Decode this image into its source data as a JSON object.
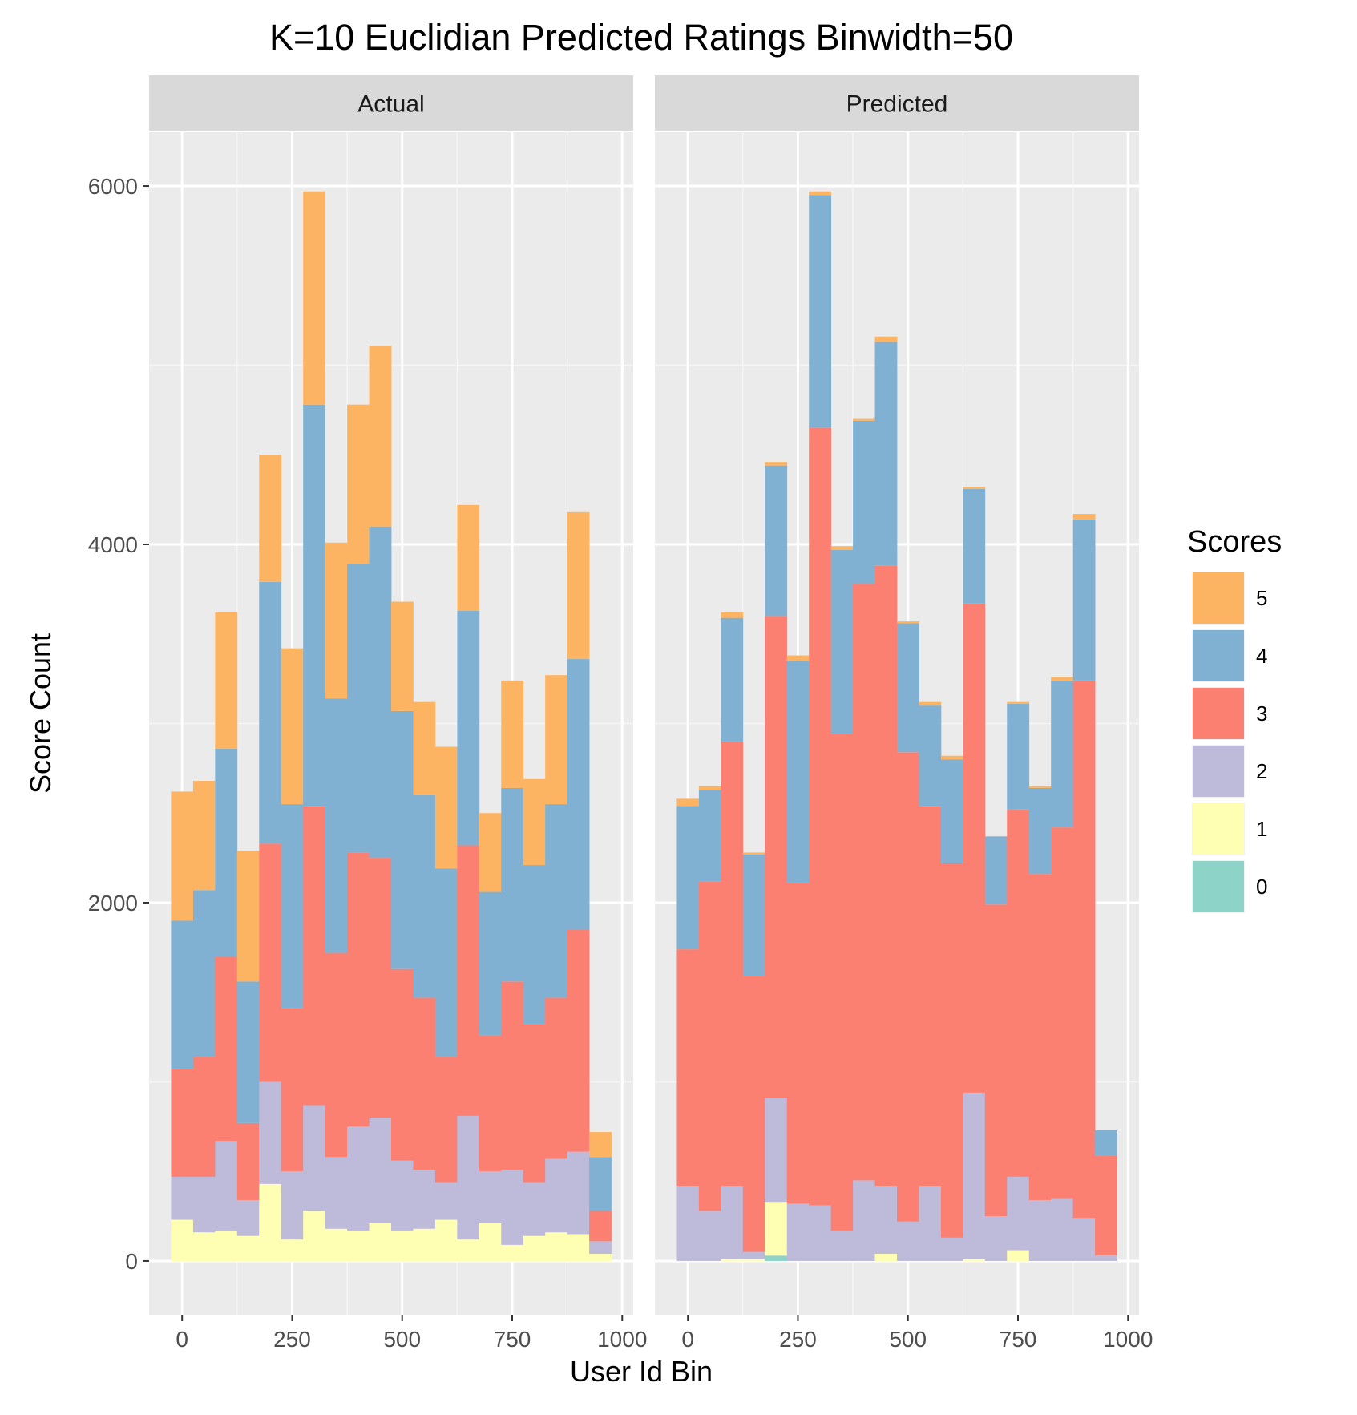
{
  "chart_data": {
    "type": "bar",
    "stacked": true,
    "title": "K=10 Euclidian Predicted Ratings Binwidth=50",
    "xlabel": "User Id Bin",
    "ylabel": "Score Count",
    "xlim": [
      -75,
      1025
    ],
    "ylim": [
      -300,
      6300
    ],
    "xticks": [
      0,
      250,
      500,
      750,
      1000
    ],
    "xtick_labels": [
      "0",
      "250",
      "500",
      "750",
      "1000"
    ],
    "yticks": [
      0,
      2000,
      4000,
      6000
    ],
    "ytick_labels": [
      "0",
      "2000",
      "4000",
      "6000"
    ],
    "bin_width": 50,
    "bins": [
      0,
      50,
      100,
      150,
      200,
      250,
      300,
      350,
      400,
      450,
      500,
      550,
      600,
      650,
      700,
      750,
      800,
      850,
      900,
      950
    ],
    "grid": true,
    "legend": {
      "title": "Scores",
      "position": "right",
      "labels": [
        "5",
        "4",
        "3",
        "2",
        "1",
        "0"
      ]
    },
    "colors": {
      "0": "#8dd3c7",
      "1": "#ffffb3",
      "2": "#bebada",
      "3": "#fb8072",
      "4": "#80b1d3",
      "5": "#fdb462"
    },
    "panels": [
      {
        "label": "Actual",
        "series": [
          {
            "name": "0",
            "values": [
              0,
              0,
              0,
              0,
              0,
              0,
              0,
              0,
              0,
              0,
              0,
              0,
              0,
              0,
              0,
              0,
              0,
              0,
              0,
              0
            ]
          },
          {
            "name": "1",
            "values": [
              230,
              160,
              170,
              140,
              430,
              120,
              280,
              180,
              170,
              210,
              170,
              180,
              230,
              120,
              210,
              90,
              140,
              160,
              150,
              40
            ]
          },
          {
            "name": "2",
            "values": [
              240,
              310,
              500,
              200,
              570,
              380,
              590,
              400,
              580,
              590,
              390,
              330,
              210,
              690,
              290,
              420,
              300,
              410,
              460,
              70
            ]
          },
          {
            "name": "3",
            "values": [
              600,
              670,
              1030,
              430,
              1330,
              910,
              1670,
              1140,
              1530,
              1450,
              1070,
              960,
              700,
              1510,
              760,
              1050,
              880,
              900,
              1240,
              170
            ]
          },
          {
            "name": "4",
            "values": [
              830,
              930,
              1160,
              790,
              1460,
              1140,
              2240,
              1420,
              1610,
              1850,
              1440,
              1130,
              1050,
              1310,
              800,
              1080,
              890,
              1080,
              1510,
              300
            ]
          },
          {
            "name": "5",
            "values": [
              720,
              610,
              760,
              730,
              710,
              870,
              1190,
              870,
              890,
              1010,
              610,
              520,
              680,
              590,
              440,
              600,
              480,
              720,
              820,
              140
            ]
          }
        ]
      },
      {
        "label": "Predicted",
        "series": [
          {
            "name": "0",
            "values": [
              0,
              0,
              0,
              0,
              30,
              0,
              0,
              0,
              0,
              0,
              0,
              0,
              0,
              0,
              0,
              0,
              0,
              0,
              0,
              0
            ]
          },
          {
            "name": "1",
            "values": [
              0,
              0,
              10,
              10,
              300,
              0,
              0,
              0,
              0,
              40,
              0,
              0,
              0,
              10,
              0,
              60,
              0,
              0,
              0,
              0
            ]
          },
          {
            "name": "2",
            "values": [
              420,
              280,
              410,
              40,
              580,
              320,
              310,
              170,
              450,
              380,
              220,
              420,
              130,
              930,
              250,
              410,
              340,
              350,
              240,
              30
            ]
          },
          {
            "name": "3",
            "values": [
              1320,
              1840,
              2480,
              1540,
              2690,
              1790,
              4340,
              2770,
              3330,
              3460,
              2620,
              2120,
              2090,
              2730,
              1740,
              2050,
              1820,
              2070,
              3000,
              560
            ]
          },
          {
            "name": "4",
            "values": [
              800,
              510,
              690,
              680,
              840,
              1240,
              1300,
              1030,
              910,
              1250,
              720,
              560,
              580,
              640,
              380,
              590,
              480,
              820,
              900,
              140
            ]
          },
          {
            "name": "5",
            "values": [
              40,
              20,
              30,
              10,
              20,
              30,
              20,
              20,
              10,
              30,
              10,
              20,
              20,
              10,
              0,
              10,
              10,
              20,
              30,
              0
            ]
          }
        ]
      }
    ]
  }
}
